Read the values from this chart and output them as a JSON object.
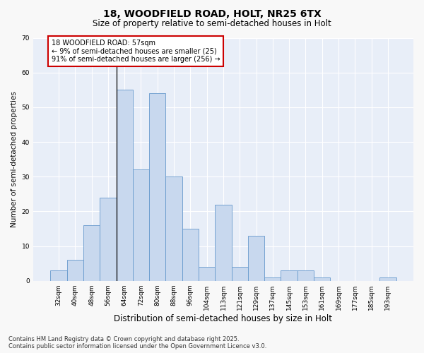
{
  "title": "18, WOODFIELD ROAD, HOLT, NR25 6TX",
  "subtitle": "Size of property relative to semi-detached houses in Holt",
  "xlabel": "Distribution of semi-detached houses by size in Holt",
  "ylabel": "Number of semi-detached properties",
  "categories": [
    "32sqm",
    "40sqm",
    "48sqm",
    "56sqm",
    "64sqm",
    "72sqm",
    "80sqm",
    "88sqm",
    "96sqm",
    "104sqm",
    "113sqm",
    "121sqm",
    "129sqm",
    "137sqm",
    "145sqm",
    "153sqm",
    "161sqm",
    "169sqm",
    "177sqm",
    "185sqm",
    "193sqm"
  ],
  "values": [
    3,
    6,
    16,
    24,
    55,
    32,
    54,
    30,
    15,
    4,
    22,
    4,
    13,
    1,
    3,
    3,
    1,
    0,
    0,
    0,
    1
  ],
  "bar_color": "#c8d8ee",
  "bar_edge_color": "#6699cc",
  "ylim": [
    0,
    70
  ],
  "yticks": [
    0,
    10,
    20,
    30,
    40,
    50,
    60,
    70
  ],
  "annotation_text": "18 WOODFIELD ROAD: 57sqm\n← 9% of semi-detached houses are smaller (25)\n91% of semi-detached houses are larger (256) →",
  "annotation_box_facecolor": "#ffffff",
  "annotation_box_edgecolor": "#cc0000",
  "vline_pos": 3.5,
  "vline_color": "#000000",
  "bg_color": "#e8eef8",
  "fig_bg_color": "#f8f8f8",
  "grid_color": "#ffffff",
  "footnote": "Contains HM Land Registry data © Crown copyright and database right 2025.\nContains public sector information licensed under the Open Government Licence v3.0.",
  "title_fontsize": 10,
  "subtitle_fontsize": 8.5,
  "xlabel_fontsize": 8.5,
  "ylabel_fontsize": 7.5,
  "tick_fontsize": 6.5,
  "annotation_fontsize": 7,
  "footnote_fontsize": 6
}
